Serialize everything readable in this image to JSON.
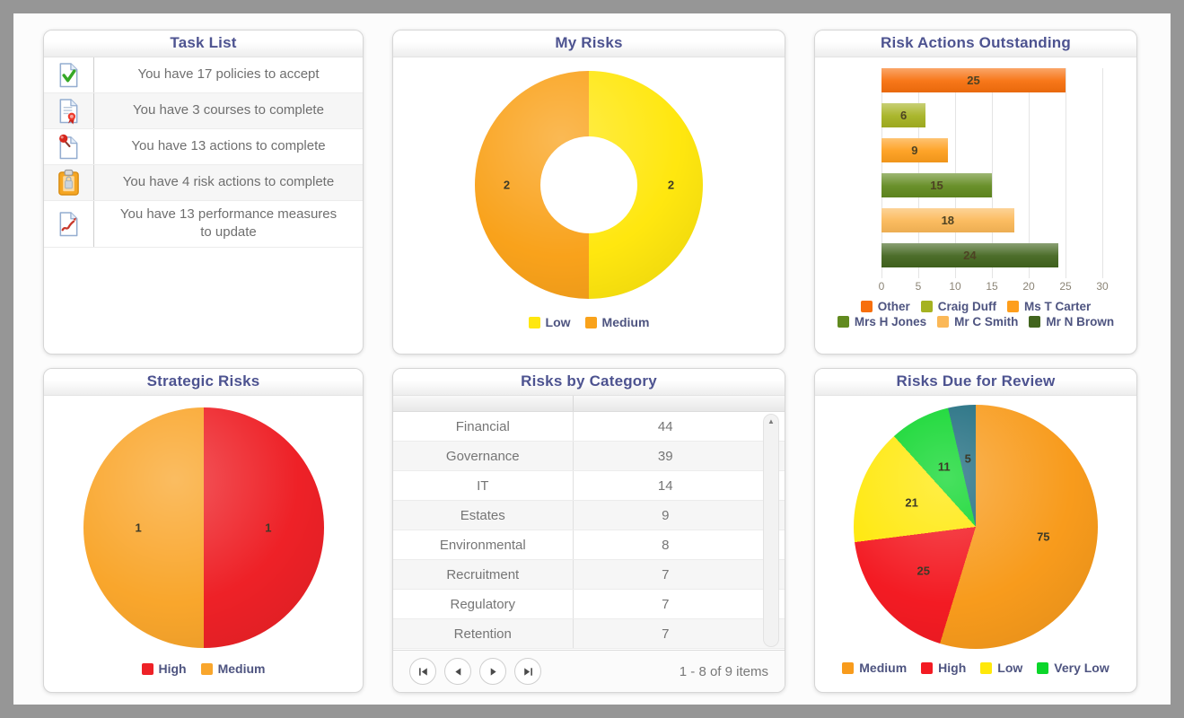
{
  "panels": {
    "task_list": {
      "title": "Task List",
      "items": [
        {
          "icon": "doc-check-icon",
          "text": "You have 17 policies to accept"
        },
        {
          "icon": "doc-ribbon-icon",
          "text": "You have 3 courses to complete"
        },
        {
          "icon": "doc-pin-icon",
          "text": "You have 13 actions to complete"
        },
        {
          "icon": "clipboard-icon",
          "text": "You have 4 risk actions to complete"
        },
        {
          "icon": "doc-chart-icon",
          "text": "You have 13 performance measures to update"
        }
      ]
    },
    "my_risks": {
      "title": "My Risks",
      "chart": {
        "type": "donut",
        "slices": [
          {
            "label": "Low",
            "value": 2,
            "color": "#FFE70F"
          },
          {
            "label": "Medium",
            "value": 2,
            "color": "#F9A21B"
          }
        ]
      }
    },
    "risk_actions": {
      "title": "Risk Actions Outstanding",
      "chart": {
        "type": "bar",
        "orientation": "horizontal",
        "max": 30,
        "ticks": [
          0,
          5,
          10,
          15,
          20,
          25,
          30
        ],
        "bars": [
          {
            "name": "Other",
            "value": 25,
            "color": "#F76F0C"
          },
          {
            "name": "Craig Duff",
            "value": 6,
            "color": "#A5B221"
          },
          {
            "name": "Ms T Carter",
            "value": 9,
            "color": "#FE9E1C"
          },
          {
            "name": "Mrs H Jones",
            "value": 15,
            "color": "#618A1F"
          },
          {
            "name": "Mr C Smith",
            "value": 18,
            "color": "#FBB857"
          },
          {
            "name": "Mr N Brown",
            "value": 24,
            "color": "#42651E"
          }
        ]
      }
    },
    "strategic_risks": {
      "title": "Strategic Risks",
      "chart": {
        "type": "pie",
        "slices": [
          {
            "label": "High",
            "value": 1,
            "color": "#EE2127"
          },
          {
            "label": "Medium",
            "value": 1,
            "color": "#F9A62C"
          }
        ]
      }
    },
    "risks_by_category": {
      "title": "Risks by Category",
      "rows": [
        {
          "category": "Financial",
          "count": "44"
        },
        {
          "category": "Governance",
          "count": "39"
        },
        {
          "category": "IT",
          "count": "14"
        },
        {
          "category": "Estates",
          "count": "9"
        },
        {
          "category": "Environmental",
          "count": "8"
        },
        {
          "category": "Recruitment",
          "count": "7"
        },
        {
          "category": "Regulatory",
          "count": "7"
        },
        {
          "category": "Retention",
          "count": "7"
        }
      ],
      "pager": {
        "status": "1 - 8 of 9 items"
      }
    },
    "risks_due": {
      "title": "Risks Due for Review",
      "chart": {
        "type": "pie",
        "slices": [
          {
            "label": "Medium",
            "value": 75,
            "color": "#F89B1C"
          },
          {
            "label": "High",
            "value": 25,
            "color": "#F31B23"
          },
          {
            "label": "Low",
            "value": 21,
            "color": "#FFE80A"
          },
          {
            "label": "Very Low",
            "value": 11,
            "color": "#0BD62A"
          },
          {
            "label": "",
            "value": 5,
            "color": "#1D6B7E"
          }
        ]
      }
    }
  },
  "colors": {
    "title": "#4d5390",
    "frame": "#969696",
    "legend_text": "#4e5480"
  }
}
